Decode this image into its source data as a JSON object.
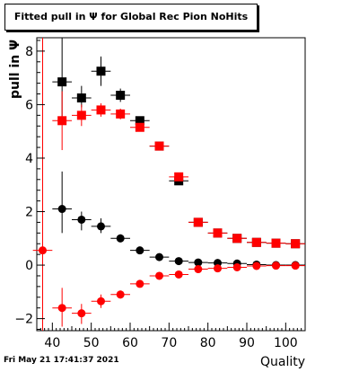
{
  "chart_data": {
    "type": "scatter",
    "title": "Fitted pull in Ψ for Global Rec Pion NoHits",
    "xlabel": "Quality",
    "ylabel": "pull in Ψ",
    "xlim": [
      36,
      105
    ],
    "ylim": [
      -2.45,
      8.5
    ],
    "xticks": [
      40,
      50,
      60,
      70,
      80,
      90,
      100
    ],
    "yticks": [
      -2,
      0,
      2,
      4,
      6,
      8
    ],
    "grid": false,
    "legend": "none",
    "reference_line": {
      "x": 37.5,
      "color": "#ff0000"
    },
    "series": [
      {
        "color": "#000000",
        "marker": "square",
        "points": [
          {
            "x": 42.5,
            "y": 6.85,
            "xerr": 2.5,
            "ylo": 5.3,
            "yhi": 8.5
          },
          {
            "x": 47.5,
            "y": 6.25,
            "xerr": 2.5,
            "ylo": 5.9,
            "yhi": 6.7
          },
          {
            "x": 52.5,
            "y": 7.25,
            "xerr": 2.5,
            "ylo": 6.7,
            "yhi": 7.8
          },
          {
            "x": 57.5,
            "y": 6.35,
            "xerr": 2.5,
            "ylo": 6.1,
            "yhi": 6.6
          },
          {
            "x": 62.5,
            "y": 5.4,
            "xerr": 2.5,
            "ylo": 5.25,
            "yhi": 5.55
          },
          {
            "x": 67.5,
            "y": 4.45,
            "xerr": 2.5,
            "ylo": 4.35,
            "yhi": 4.55
          },
          {
            "x": 72.5,
            "y": 3.15,
            "xerr": 2.5,
            "ylo": 3.05,
            "yhi": 3.25
          },
          {
            "x": 77.5,
            "y": 1.6,
            "xerr": 2.5,
            "ylo": 1.55,
            "yhi": 1.65
          },
          {
            "x": 82.5,
            "y": 1.2,
            "xerr": 2.5,
            "ylo": 1.15,
            "yhi": 1.25
          },
          {
            "x": 87.5,
            "y": 1.0,
            "xerr": 2.5,
            "ylo": 0.95,
            "yhi": 1.05
          },
          {
            "x": 92.5,
            "y": 0.85,
            "xerr": 2.5,
            "ylo": 0.8,
            "yhi": 0.9
          },
          {
            "x": 97.5,
            "y": 0.82,
            "xerr": 2.5,
            "ylo": 0.78,
            "yhi": 0.86
          },
          {
            "x": 102.5,
            "y": 0.8,
            "xerr": 2.5,
            "ylo": 0.76,
            "yhi": 0.84
          }
        ]
      },
      {
        "color": "#ff0000",
        "marker": "square",
        "points": [
          {
            "x": 42.5,
            "y": 5.4,
            "xerr": 2.5,
            "ylo": 4.3,
            "yhi": 6.5
          },
          {
            "x": 47.5,
            "y": 5.6,
            "xerr": 2.5,
            "ylo": 5.2,
            "yhi": 6.0
          },
          {
            "x": 52.5,
            "y": 5.8,
            "xerr": 2.5,
            "ylo": 5.55,
            "yhi": 6.05
          },
          {
            "x": 57.5,
            "y": 5.65,
            "xerr": 2.5,
            "ylo": 5.45,
            "yhi": 5.85
          },
          {
            "x": 62.5,
            "y": 5.15,
            "xerr": 2.5,
            "ylo": 5.05,
            "yhi": 5.25
          },
          {
            "x": 67.5,
            "y": 4.45,
            "xerr": 2.5,
            "ylo": 4.35,
            "yhi": 4.55
          },
          {
            "x": 72.5,
            "y": 3.3,
            "xerr": 2.5,
            "ylo": 3.2,
            "yhi": 3.4
          },
          {
            "x": 77.5,
            "y": 1.6,
            "xerr": 2.5,
            "ylo": 1.55,
            "yhi": 1.65
          },
          {
            "x": 82.5,
            "y": 1.2,
            "xerr": 2.5,
            "ylo": 1.15,
            "yhi": 1.25
          },
          {
            "x": 87.5,
            "y": 1.0,
            "xerr": 2.5,
            "ylo": 0.95,
            "yhi": 1.05
          },
          {
            "x": 92.5,
            "y": 0.85,
            "xerr": 2.5,
            "ylo": 0.8,
            "yhi": 0.9
          },
          {
            "x": 97.5,
            "y": 0.82,
            "xerr": 2.5,
            "ylo": 0.78,
            "yhi": 0.86
          },
          {
            "x": 102.5,
            "y": 0.8,
            "xerr": 2.5,
            "ylo": 0.76,
            "yhi": 0.84
          }
        ]
      },
      {
        "color": "#000000",
        "marker": "circle",
        "points": [
          {
            "x": 42.5,
            "y": 2.1,
            "xerr": 2.5,
            "ylo": 1.2,
            "yhi": 3.5
          },
          {
            "x": 47.5,
            "y": 1.7,
            "xerr": 2.5,
            "ylo": 1.3,
            "yhi": 2.0
          },
          {
            "x": 52.5,
            "y": 1.45,
            "xerr": 2.5,
            "ylo": 1.2,
            "yhi": 1.75
          },
          {
            "x": 57.5,
            "y": 1.0,
            "xerr": 2.5,
            "ylo": 0.85,
            "yhi": 1.15
          },
          {
            "x": 62.5,
            "y": 0.55,
            "xerr": 2.5,
            "ylo": 0.5,
            "yhi": 0.6
          },
          {
            "x": 67.5,
            "y": 0.3,
            "xerr": 2.5,
            "ylo": 0.25,
            "yhi": 0.35
          },
          {
            "x": 72.5,
            "y": 0.15,
            "xerr": 2.5,
            "ylo": 0.12,
            "yhi": 0.18
          },
          {
            "x": 77.5,
            "y": 0.1,
            "xerr": 2.5,
            "ylo": 0.08,
            "yhi": 0.12
          },
          {
            "x": 82.5,
            "y": 0.08,
            "xerr": 2.5,
            "ylo": 0.06,
            "yhi": 0.1
          },
          {
            "x": 87.5,
            "y": 0.06,
            "xerr": 2.5,
            "ylo": 0.04,
            "yhi": 0.08
          },
          {
            "x": 92.5,
            "y": 0.02,
            "xerr": 2.5,
            "ylo": 0.0,
            "yhi": 0.04
          },
          {
            "x": 97.5,
            "y": 0.0,
            "xerr": 2.5,
            "ylo": -0.02,
            "yhi": 0.02
          },
          {
            "x": 102.5,
            "y": 0.0,
            "xerr": 2.5,
            "ylo": -0.02,
            "yhi": 0.02
          }
        ]
      },
      {
        "color": "#ff0000",
        "marker": "circle",
        "points": [
          {
            "x": 37.5,
            "y": 0.55,
            "xerr": 2.5,
            "ylo": 0.55,
            "yhi": 0.55
          },
          {
            "x": 42.5,
            "y": -1.6,
            "xerr": 2.5,
            "ylo": -2.3,
            "yhi": -0.85
          },
          {
            "x": 47.5,
            "y": -1.8,
            "xerr": 2.5,
            "ylo": -2.2,
            "yhi": -1.45
          },
          {
            "x": 52.5,
            "y": -1.35,
            "xerr": 2.5,
            "ylo": -1.6,
            "yhi": -1.1
          },
          {
            "x": 57.5,
            "y": -1.1,
            "xerr": 2.5,
            "ylo": -1.25,
            "yhi": -0.95
          },
          {
            "x": 62.5,
            "y": -0.7,
            "xerr": 2.5,
            "ylo": -0.8,
            "yhi": -0.6
          },
          {
            "x": 67.5,
            "y": -0.4,
            "xerr": 2.5,
            "ylo": -0.45,
            "yhi": -0.35
          },
          {
            "x": 72.5,
            "y": -0.35,
            "xerr": 2.5,
            "ylo": -0.4,
            "yhi": -0.3
          },
          {
            "x": 77.5,
            "y": -0.15,
            "xerr": 2.5,
            "ylo": -0.2,
            "yhi": -0.1
          },
          {
            "x": 82.5,
            "y": -0.12,
            "xerr": 2.5,
            "ylo": -0.16,
            "yhi": -0.08
          },
          {
            "x": 87.5,
            "y": -0.08,
            "xerr": 2.5,
            "ylo": -0.11,
            "yhi": -0.05
          },
          {
            "x": 92.5,
            "y": -0.03,
            "xerr": 2.5,
            "ylo": -0.05,
            "yhi": -0.01
          },
          {
            "x": 97.5,
            "y": -0.02,
            "xerr": 2.5,
            "ylo": -0.04,
            "yhi": 0.0
          },
          {
            "x": 102.5,
            "y": -0.02,
            "xerr": 2.5,
            "ylo": -0.04,
            "yhi": 0.0
          }
        ]
      }
    ]
  },
  "footer": {
    "timestamp": "Fri May 21 17:41:37 2021"
  }
}
